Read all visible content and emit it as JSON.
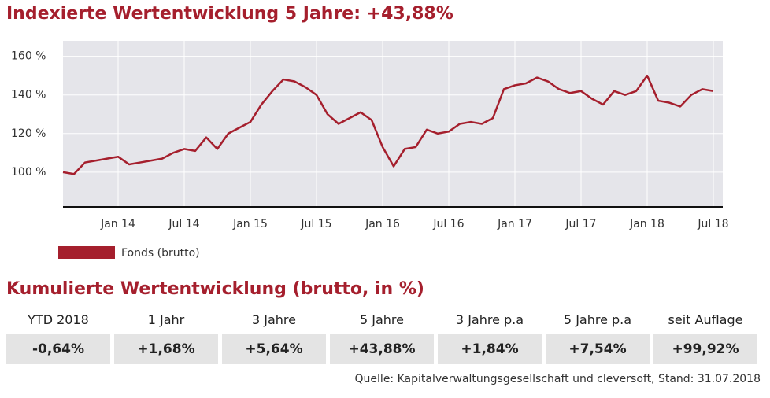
{
  "chart_data": {
    "type": "line",
    "title": "Indexierte Wertentwicklung 5 Jahre: +43,88%",
    "categories": [
      null,
      null,
      null,
      null,
      null,
      "Jan 14",
      null,
      null,
      null,
      null,
      null,
      "Jul 14",
      null,
      null,
      null,
      null,
      null,
      "Jan 15",
      null,
      null,
      null,
      null,
      null,
      "Jul 15",
      null,
      null,
      null,
      null,
      null,
      "Jan 16",
      null,
      null,
      null,
      null,
      null,
      "Jul 16",
      null,
      null,
      null,
      null,
      null,
      "Jan 17",
      null,
      null,
      null,
      null,
      null,
      "Jul 17",
      null,
      null,
      null,
      null,
      null,
      "Jan 18",
      null,
      null,
      null,
      null,
      null,
      "Jul 18"
    ],
    "series": [
      {
        "name": "Fonds (brutto)",
        "color": "#a51f2d",
        "values": [
          100,
          99,
          105,
          106,
          107,
          108,
          104,
          105,
          106,
          107,
          110,
          112,
          111,
          118,
          112,
          120,
          123,
          126,
          135,
          142,
          148,
          147,
          144,
          140,
          130,
          125,
          128,
          131,
          127,
          113,
          103,
          112,
          113,
          122,
          120,
          121,
          125,
          126,
          125,
          128,
          143,
          145,
          146,
          149,
          147,
          143,
          141,
          142,
          138,
          135,
          142,
          140,
          142,
          150,
          137,
          136,
          134,
          140,
          143,
          142
        ]
      }
    ],
    "ylim": [
      82,
      168
    ],
    "yticks": [
      {
        "value": 100,
        "label": "100 %"
      },
      {
        "value": 120,
        "label": "120 %"
      },
      {
        "value": 140,
        "label": "140 %"
      },
      {
        "value": 160,
        "label": "160 %"
      }
    ],
    "grid": true,
    "legend": "bottom-left"
  },
  "table": {
    "title": "Kumulierte Wertentwicklung (brutto, in %)",
    "headers": [
      "YTD 2018",
      "1 Jahr",
      "3 Jahre",
      "5 Jahre",
      "3 Jahre p.a",
      "5 Jahre p.a",
      "seit Auflage"
    ],
    "rows": [
      [
        "-0,64%",
        "+1,68%",
        "+5,64%",
        "+43,88%",
        "+1,84%",
        "+7,54%",
        "+99,92%"
      ]
    ],
    "source": "Quelle: Kapitalverwaltungsgesellschaft und cleversoft, Stand: 31.07.2018"
  }
}
